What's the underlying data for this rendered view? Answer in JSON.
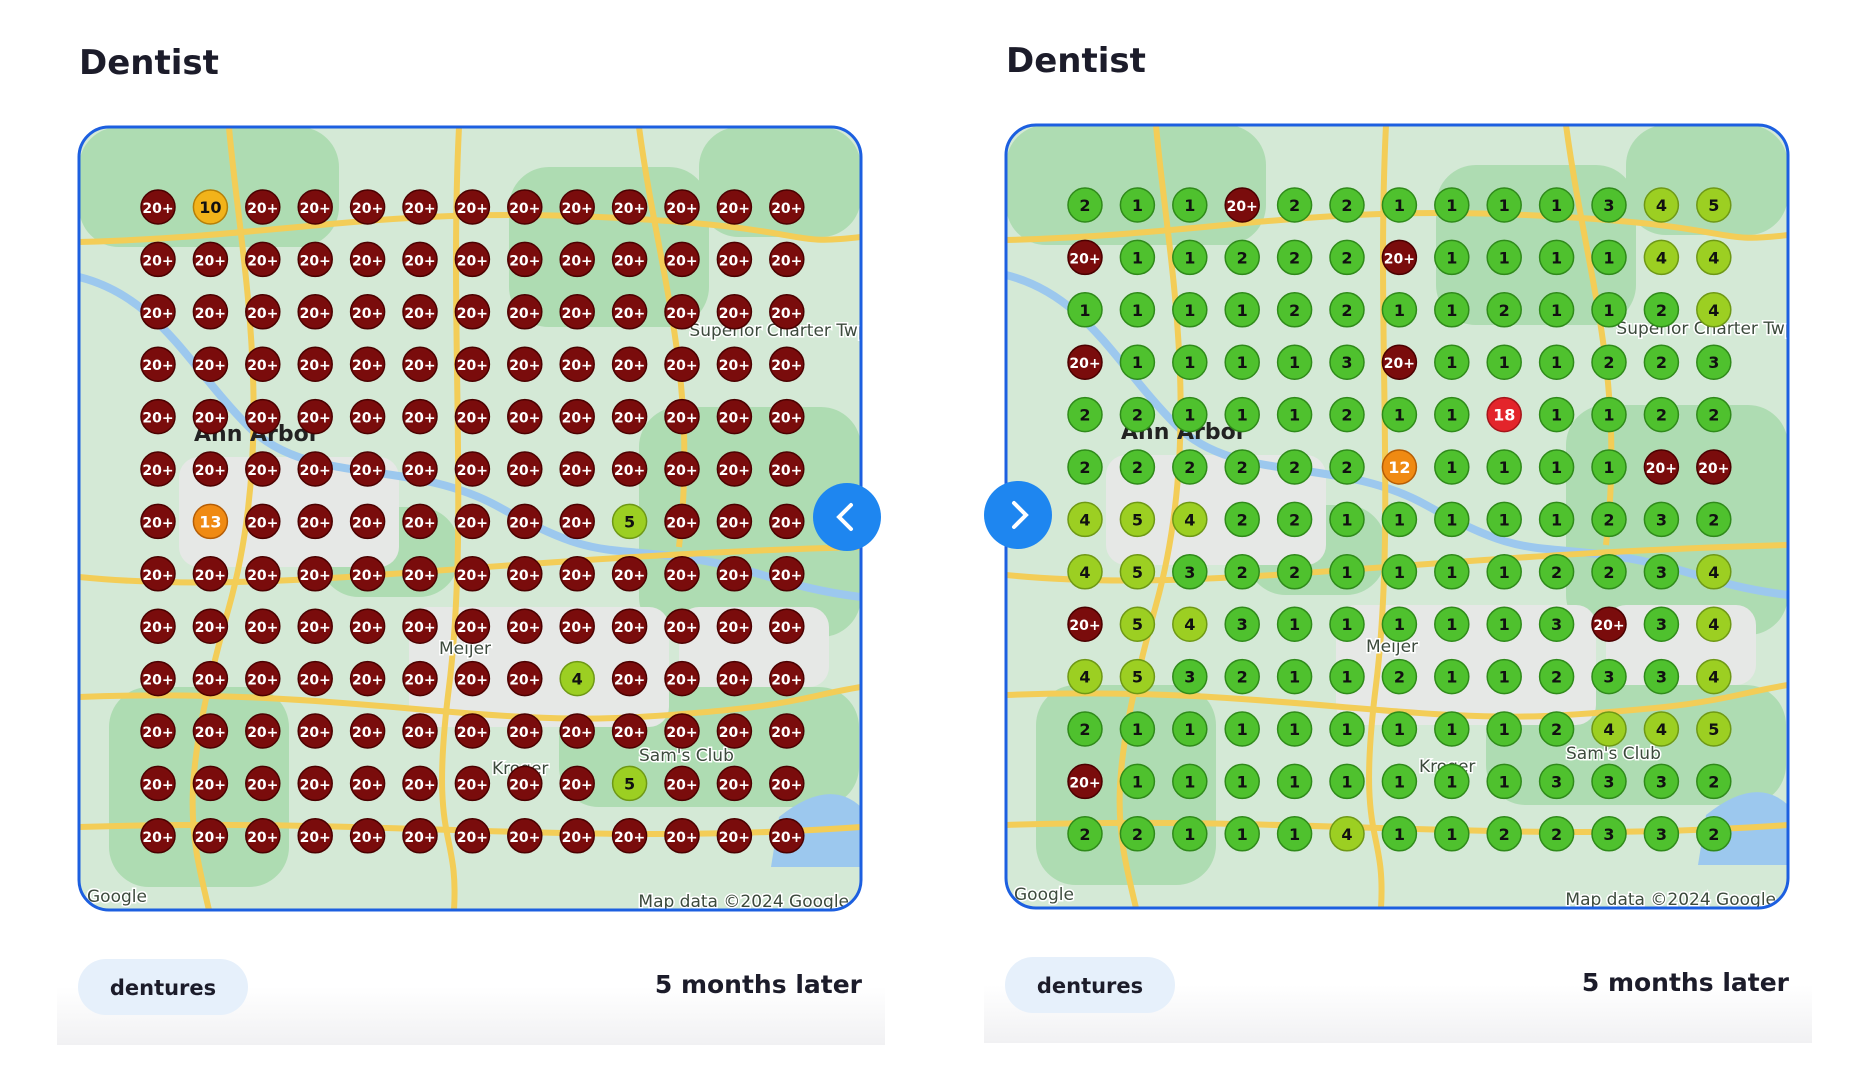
{
  "panels": [
    {
      "title": "Dentist",
      "keyword": "dentures",
      "caption": "5 months later",
      "map_labels": [
        "Ann Arbor",
        "Superior Charter Twp",
        "Meijer",
        "Sam's Club",
        "Kroger",
        "Google",
        "Map data ©2024 Google"
      ],
      "grid": [
        [
          "20+",
          10,
          "20+",
          "20+",
          "20+",
          "20+",
          "20+",
          "20+",
          "20+",
          "20+",
          "20+",
          "20+",
          "20+"
        ],
        [
          "20+",
          "20+",
          "20+",
          "20+",
          "20+",
          "20+",
          "20+",
          "20+",
          "20+",
          "20+",
          "20+",
          "20+",
          "20+"
        ],
        [
          "20+",
          "20+",
          "20+",
          "20+",
          "20+",
          "20+",
          "20+",
          "20+",
          "20+",
          "20+",
          "20+",
          "20+",
          "20+"
        ],
        [
          "20+",
          "20+",
          "20+",
          "20+",
          "20+",
          "20+",
          "20+",
          "20+",
          "20+",
          "20+",
          "20+",
          "20+",
          "20+"
        ],
        [
          "20+",
          "20+",
          "20+",
          "20+",
          "20+",
          "20+",
          "20+",
          "20+",
          "20+",
          "20+",
          "20+",
          "20+",
          "20+"
        ],
        [
          "20+",
          "20+",
          "20+",
          "20+",
          "20+",
          "20+",
          "20+",
          "20+",
          "20+",
          "20+",
          "20+",
          "20+",
          "20+"
        ],
        [
          "20+",
          13,
          "20+",
          "20+",
          "20+",
          "20+",
          "20+",
          "20+",
          "20+",
          5,
          "20+",
          "20+",
          "20+"
        ],
        [
          "20+",
          "20+",
          "20+",
          "20+",
          "20+",
          "20+",
          "20+",
          "20+",
          "20+",
          "20+",
          "20+",
          "20+",
          "20+"
        ],
        [
          "20+",
          "20+",
          "20+",
          "20+",
          "20+",
          "20+",
          "20+",
          "20+",
          "20+",
          "20+",
          "20+",
          "20+",
          "20+"
        ],
        [
          "20+",
          "20+",
          "20+",
          "20+",
          "20+",
          "20+",
          "20+",
          "20+",
          4,
          "20+",
          "20+",
          "20+",
          "20+"
        ],
        [
          "20+",
          "20+",
          "20+",
          "20+",
          "20+",
          "20+",
          "20+",
          "20+",
          "20+",
          "20+",
          "20+",
          "20+",
          "20+"
        ],
        [
          "20+",
          "20+",
          "20+",
          "20+",
          "20+",
          "20+",
          "20+",
          "20+",
          "20+",
          5,
          "20+",
          "20+",
          "20+"
        ],
        [
          "20+",
          "20+",
          "20+",
          "20+",
          "20+",
          "20+",
          "20+",
          "20+",
          "20+",
          "20+",
          "20+",
          "20+",
          "20+"
        ]
      ]
    },
    {
      "title": "Dentist",
      "keyword": "dentures",
      "caption": "5 months later",
      "map_labels": [
        "Ann Arbor",
        "Superior Charter Twp",
        "Meijer",
        "Sam's Club",
        "Kroger",
        "Google",
        "Map data ©2024 Google"
      ],
      "grid": [
        [
          2,
          1,
          1,
          "20+",
          2,
          2,
          1,
          1,
          1,
          1,
          3,
          4,
          5
        ],
        [
          "20+",
          1,
          1,
          2,
          2,
          2,
          "20+",
          1,
          1,
          1,
          1,
          4,
          4
        ],
        [
          1,
          1,
          1,
          1,
          2,
          2,
          1,
          1,
          2,
          1,
          1,
          2,
          4
        ],
        [
          "20+",
          1,
          1,
          1,
          1,
          3,
          "20+",
          1,
          1,
          1,
          2,
          2,
          3
        ],
        [
          2,
          2,
          1,
          1,
          1,
          2,
          1,
          1,
          18,
          1,
          1,
          2,
          2
        ],
        [
          2,
          2,
          2,
          2,
          2,
          2,
          12,
          1,
          1,
          1,
          1,
          "20+",
          "20+"
        ],
        [
          4,
          5,
          4,
          2,
          2,
          1,
          1,
          1,
          1,
          1,
          2,
          3,
          2
        ],
        [
          4,
          5,
          3,
          2,
          2,
          1,
          1,
          1,
          1,
          2,
          2,
          3,
          4
        ],
        [
          "20+",
          5,
          4,
          3,
          1,
          1,
          1,
          1,
          1,
          3,
          "20+",
          3,
          4
        ],
        [
          4,
          5,
          3,
          2,
          1,
          1,
          2,
          1,
          1,
          2,
          3,
          3,
          4
        ],
        [
          2,
          1,
          1,
          1,
          1,
          1,
          1,
          1,
          1,
          2,
          4,
          4,
          5
        ],
        [
          "20+",
          1,
          1,
          1,
          1,
          1,
          1,
          1,
          1,
          3,
          3,
          3,
          2
        ],
        [
          2,
          2,
          1,
          1,
          1,
          4,
          1,
          1,
          2,
          2,
          3,
          3,
          2
        ]
      ]
    }
  ]
}
